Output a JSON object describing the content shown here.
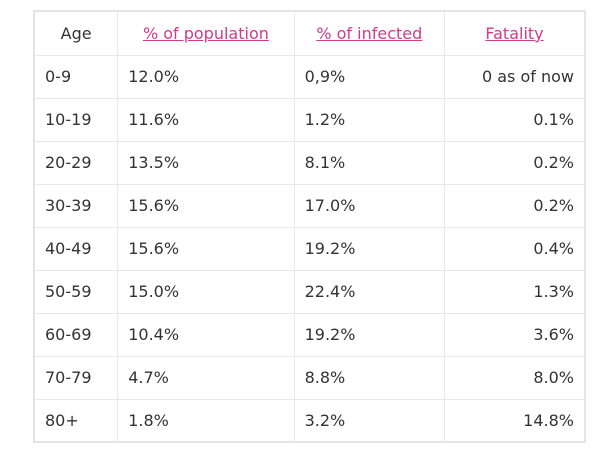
{
  "table": {
    "header": [
      "Age",
      "% of population",
      "% of infected",
      "Fatality"
    ],
    "rows": [
      [
        "0-9",
        "12.0%",
        "0,9%",
        "0 as of now"
      ],
      [
        "10-19",
        "11.6%",
        "1.2%",
        "0.1%"
      ],
      [
        "20-29",
        "13.5%",
        "8.1%",
        "0.2%"
      ],
      [
        "30-39",
        "15.6%",
        "17.0%",
        "0.2%"
      ],
      [
        "40-49",
        "15.6%",
        "19.2%",
        "0.4%"
      ],
      [
        "50-59",
        "15.0%",
        "22.4%",
        "1.3%"
      ],
      [
        "60-69",
        "10.4%",
        "19.2%",
        "3.6%"
      ],
      [
        "70-79",
        "4.7%",
        "8.8%",
        "8.0%"
      ],
      [
        "80+",
        "1.8%",
        "3.2%",
        "14.8%"
      ]
    ]
  }
}
